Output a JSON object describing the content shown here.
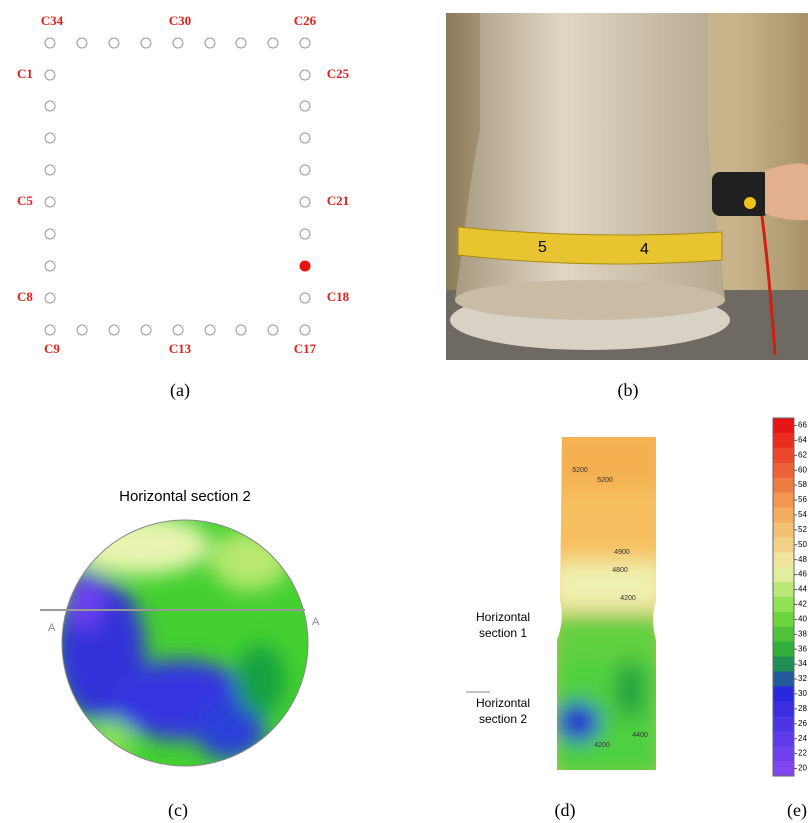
{
  "panel_a": {
    "label": "(a)",
    "sensors": [
      "C34",
      "C30",
      "C26",
      "C1",
      "C5",
      "C8",
      "C25",
      "C21",
      "C18",
      "C9",
      "C13",
      "C17"
    ]
  },
  "panel_b": {
    "label": "(b)",
    "tape_marks": [
      "5",
      "4"
    ]
  },
  "panel_c": {
    "label": "(c)",
    "title": "Horizontal section 2",
    "section_marks": [
      "A",
      "A"
    ]
  },
  "panel_d": {
    "label": "(d)",
    "annotations": [
      [
        "Horizontal",
        "section 1"
      ],
      [
        "Horizontal",
        "section 2"
      ]
    ],
    "contour_labels": [
      "5200",
      "5200",
      "4900",
      "4800",
      "4200",
      "4200",
      "4400"
    ]
  },
  "panel_e": {
    "label": "(e)",
    "scale": [
      66,
      64,
      62,
      60,
      58,
      56,
      54,
      52,
      50,
      48,
      46,
      44,
      42,
      40,
      38,
      36,
      34,
      32,
      30,
      28,
      26,
      24,
      22,
      20
    ]
  }
}
